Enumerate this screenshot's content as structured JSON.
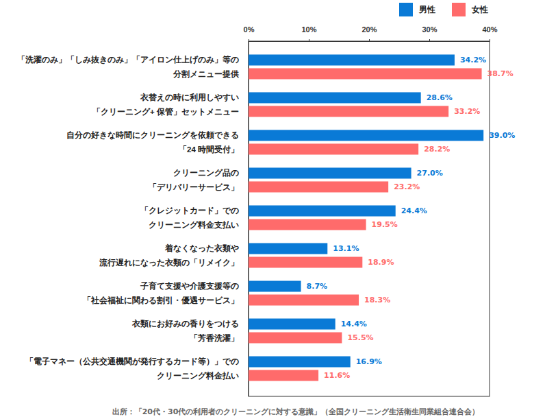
{
  "chart_data": {
    "type": "bar",
    "orientation": "horizontal",
    "categories": [
      "「洗濯のみ」「しみ抜きのみ」「アイロン仕上げのみ」等の\n分割メニュー提供",
      "衣替えの時に利用しやすい\n「クリーニング+ 保管」セットメニュー",
      "自分の好きな時間にクリーニングを依頼できる\n「24 時間受付」",
      "クリーニング品の\n「デリバリーサービス」",
      "「クレジットカード」での\nクリーニング料金支払い",
      "着なくなった衣類や\n流行遅れになった衣類の「リメイク」",
      "子育て支援や介護支援等の\n「社会福祉に関わる割引・優遇サービス」",
      "衣類にお好みの香りをつける\n「芳香洗濯」",
      "「電子マネー（公共交通機関が発行するカード等）」での\nクリーニング料金払い"
    ],
    "series": [
      {
        "name": "男性",
        "color": "#0a7ad6",
        "values": [
          34.2,
          28.6,
          39.0,
          27.0,
          24.4,
          13.1,
          8.7,
          14.4,
          16.9
        ],
        "value_labels": [
          "34.2%",
          "28.6%",
          "39.0%",
          "27.0%",
          "24.4%",
          "13.1%",
          "8.7%",
          "14.4%",
          "16.9%"
        ]
      },
      {
        "name": "女性",
        "color": "#ff6b6b",
        "values": [
          38.7,
          33.2,
          28.2,
          23.2,
          19.5,
          18.9,
          18.3,
          15.5,
          11.6
        ],
        "value_labels": [
          "38.7%",
          "33.2%",
          "28.2%",
          "23.2%",
          "19.5%",
          "18.9%",
          "18.3%",
          "15.5%",
          "11.6%"
        ]
      }
    ],
    "xlim": [
      0,
      40
    ],
    "xticks": [
      {
        "value": 0,
        "label": "0%"
      },
      {
        "value": 10,
        "label": "10%"
      },
      {
        "value": 20,
        "label": "20%"
      },
      {
        "value": 30,
        "label": "30%"
      },
      {
        "value": 40,
        "label": "40%"
      }
    ],
    "grid": false,
    "legend": "top-right",
    "data_labels": true,
    "annotations": [
      "出所：「20代・30代の利用者のクリーニングに対する意識」（全国クリーニング生活衛生同業組合連合会）"
    ]
  }
}
